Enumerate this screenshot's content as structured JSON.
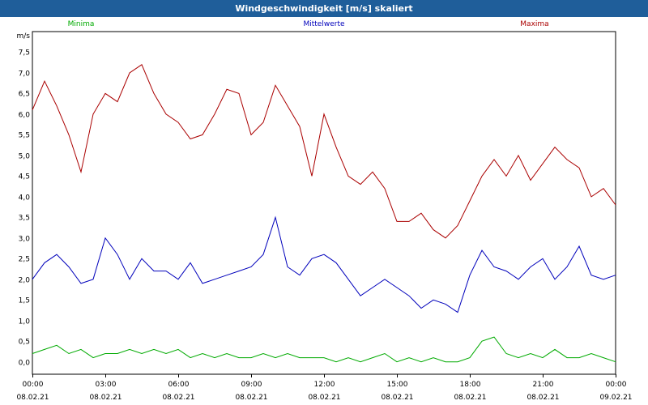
{
  "window": {
    "title": "Windgeschwindigkeit [m/s] skaliert"
  },
  "chart_data": {
    "type": "line",
    "title": "Windgeschwindigkeit [m/s] skaliert",
    "ylabel": "m/s",
    "ylim": [
      -0.3,
      8.0
    ],
    "xlim_hours": [
      0,
      24
    ],
    "yticks": [
      "0,0",
      "0,5",
      "1,0",
      "1,5",
      "2,0",
      "2,5",
      "3,0",
      "3,5",
      "4,0",
      "4,5",
      "5,0",
      "5,5",
      "6,0",
      "6,5",
      "7,0",
      "7,5"
    ],
    "ytick_values": [
      0,
      0.5,
      1,
      1.5,
      2,
      2.5,
      3,
      3.5,
      4,
      4.5,
      5,
      5.5,
      6,
      6.5,
      7,
      7.5
    ],
    "xticks": [
      {
        "time": "00:00",
        "date": "08.02.21"
      },
      {
        "time": "03:00",
        "date": "08.02.21"
      },
      {
        "time": "06:00",
        "date": "08.02.21"
      },
      {
        "time": "09:00",
        "date": "08.02.21"
      },
      {
        "time": "12:00",
        "date": "08.02.21"
      },
      {
        "time": "15:00",
        "date": "08.02.21"
      },
      {
        "time": "18:00",
        "date": "08.02.21"
      },
      {
        "time": "21:00",
        "date": "08.02.21"
      },
      {
        "time": "00:00",
        "date": "09.02.21"
      }
    ],
    "grid": true,
    "legend_position": "top",
    "x_hours": [
      0,
      0.5,
      1,
      1.5,
      2,
      2.5,
      3,
      3.5,
      4,
      4.5,
      5,
      5.5,
      6,
      6.5,
      7,
      7.5,
      8,
      8.5,
      9,
      9.5,
      10,
      10.5,
      11,
      11.5,
      12,
      12.5,
      13,
      13.5,
      14,
      14.5,
      15,
      15.5,
      16,
      16.5,
      17,
      17.5,
      18,
      18.5,
      19,
      19.5,
      20,
      20.5,
      21,
      21.5,
      22,
      22.5,
      23,
      23.5,
      24
    ],
    "series": [
      {
        "name": "Minima",
        "color": "#00aa00",
        "values": [
          0.2,
          0.3,
          0.4,
          0.2,
          0.3,
          0.1,
          0.2,
          0.2,
          0.3,
          0.2,
          0.3,
          0.2,
          0.3,
          0.1,
          0.2,
          0.1,
          0.2,
          0.1,
          0.1,
          0.2,
          0.1,
          0.2,
          0.1,
          0.1,
          0.1,
          0.0,
          0.1,
          0.0,
          0.1,
          0.2,
          0.0,
          0.1,
          0.0,
          0.1,
          0.0,
          0.0,
          0.1,
          0.5,
          0.6,
          0.2,
          0.1,
          0.2,
          0.1,
          0.3,
          0.1,
          0.1,
          0.2,
          0.1,
          0.0
        ]
      },
      {
        "name": "Mittelwerte",
        "color": "#0000bb",
        "values": [
          2.0,
          2.4,
          2.6,
          2.3,
          1.9,
          2.0,
          3.0,
          2.6,
          2.0,
          2.5,
          2.2,
          2.2,
          2.0,
          2.4,
          1.9,
          2.0,
          2.1,
          2.2,
          2.3,
          2.6,
          3.5,
          2.3,
          2.1,
          2.5,
          2.6,
          2.4,
          2.0,
          1.6,
          1.8,
          2.0,
          1.8,
          1.6,
          1.3,
          1.5,
          1.4,
          1.2,
          2.1,
          2.7,
          2.3,
          2.2,
          2.0,
          2.3,
          2.5,
          2.0,
          2.3,
          2.8,
          2.1,
          2.0,
          2.1
        ]
      },
      {
        "name": "Maxima",
        "color": "#aa0000",
        "values": [
          6.1,
          6.8,
          6.2,
          5.5,
          4.6,
          6.0,
          6.5,
          6.3,
          7.0,
          7.2,
          6.5,
          6.0,
          5.8,
          5.4,
          5.5,
          6.0,
          6.6,
          6.5,
          5.5,
          5.8,
          6.7,
          6.2,
          5.7,
          4.5,
          6.0,
          5.2,
          4.5,
          4.3,
          4.6,
          4.2,
          3.4,
          3.4,
          3.6,
          3.2,
          3.0,
          3.3,
          3.9,
          4.5,
          4.9,
          4.5,
          5.0,
          4.4,
          4.8,
          5.2,
          4.9,
          4.7,
          4.0,
          4.2,
          3.8
        ]
      }
    ]
  }
}
